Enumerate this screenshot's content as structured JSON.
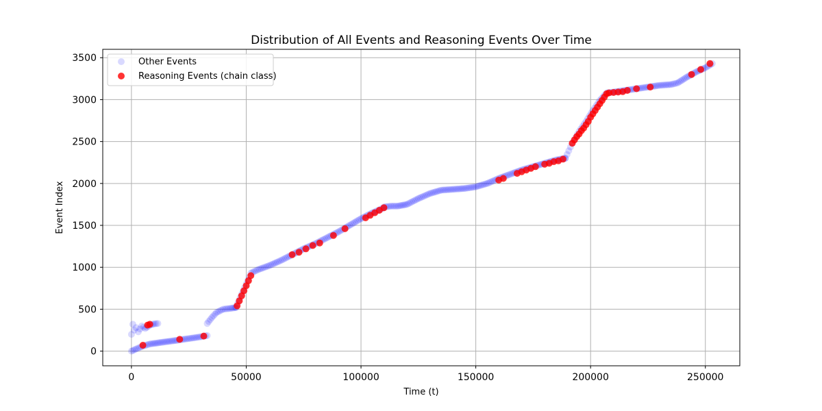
{
  "chart_data": {
    "type": "scatter",
    "title": "Distribution of All Events and Reasoning Events Over Time",
    "xlabel": "Time (t)",
    "ylabel": "Event Index",
    "xlim": [
      -12500,
      265000
    ],
    "ylim": [
      -175,
      3600
    ],
    "xticks": [
      0,
      50000,
      100000,
      150000,
      200000,
      250000
    ],
    "yticks": [
      0,
      500,
      1000,
      1500,
      2000,
      2500,
      3000,
      3500
    ],
    "grid": true,
    "legend_position": "top-left",
    "series": [
      {
        "name": "Other Events",
        "color": "#0000ff",
        "marker_alpha": 0.15,
        "segments": [
          {
            "x": [
              0,
              2000,
              5000,
              8000,
              12000,
              16000,
              20000,
              25000,
              30000,
              33000
            ],
            "y": [
              0,
              25,
              60,
              85,
              100,
              115,
              130,
              150,
              170,
              185
            ]
          },
          {
            "x": [
              0,
              600,
              1200,
              2000,
              3000,
              4500,
              6000,
              8000,
              10000,
              11500
            ],
            "y": [
              200,
              320,
              250,
              280,
              230,
              300,
              270,
              310,
              325,
              330
            ]
          },
          {
            "x": [
              33000,
              35000,
              37000,
              40000,
              43000,
              45500
            ],
            "y": [
              330,
              400,
              460,
              500,
              510,
              520
            ]
          },
          {
            "x": [
              45500,
              48000,
              50000,
              52000,
              55000,
              60000,
              65000,
              70000,
              75000,
              80000,
              85000,
              90000,
              95000,
              100000,
              105000,
              110000
            ],
            "y": [
              520,
              680,
              800,
              930,
              970,
              1020,
              1080,
              1150,
              1220,
              1280,
              1350,
              1420,
              1500,
              1580,
              1650,
              1710
            ]
          },
          {
            "x": [
              110000,
              113000,
              116000,
              120000,
              125000,
              130000,
              135000,
              140000,
              145000,
              150000,
              155000,
              160000,
              165000,
              170000,
              175000,
              180000,
              185000,
              189000
            ],
            "y": [
              1720,
              1730,
              1730,
              1750,
              1820,
              1880,
              1920,
              1930,
              1940,
              1960,
              2000,
              2060,
              2110,
              2160,
              2200,
              2240,
              2280,
              2300
            ]
          },
          {
            "x": [
              189000,
              192000,
              195000,
              198000,
              201000,
              204000,
              207000,
              210000,
              215000,
              220000,
              225000,
              230000,
              235000,
              238000,
              242000,
              246000,
              250000,
              253000
            ],
            "y": [
              2300,
              2480,
              2620,
              2740,
              2870,
              2990,
              3080,
              3090,
              3110,
              3130,
              3150,
              3170,
              3180,
              3200,
              3270,
              3330,
              3380,
              3430
            ]
          }
        ]
      },
      {
        "name": "Reasoning Events (chain class)",
        "color": "#ff0000",
        "marker_alpha": 0.8,
        "x": [
          5000,
          7000,
          8000,
          21000,
          31500,
          46000,
          47000,
          48000,
          49000,
          50000,
          51000,
          52000,
          70000,
          73000,
          76000,
          79000,
          82000,
          88000,
          93000,
          102000,
          104000,
          106000,
          108000,
          110000,
          160000,
          162000,
          168000,
          170000,
          172000,
          174000,
          176000,
          180000,
          182000,
          184000,
          186000,
          188000,
          192000,
          193000,
          194000,
          195000,
          196000,
          197000,
          198000,
          199000,
          200000,
          201000,
          202000,
          203000,
          204000,
          205000,
          206000,
          207000,
          208000,
          210000,
          212000,
          214000,
          216000,
          220000,
          226000,
          244000,
          248000,
          252000
        ],
        "y": [
          70,
          310,
          320,
          140,
          180,
          540,
          600,
          660,
          720,
          780,
          840,
          900,
          1150,
          1180,
          1220,
          1260,
          1290,
          1380,
          1460,
          1590,
          1620,
          1650,
          1680,
          1710,
          2040,
          2060,
          2120,
          2140,
          2160,
          2180,
          2200,
          2230,
          2240,
          2260,
          2270,
          2290,
          2480,
          2520,
          2560,
          2590,
          2630,
          2660,
          2700,
          2740,
          2790,
          2830,
          2870,
          2910,
          2950,
          2990,
          3030,
          3070,
          3080,
          3085,
          3090,
          3095,
          3110,
          3130,
          3150,
          3300,
          3360,
          3430
        ]
      }
    ]
  }
}
